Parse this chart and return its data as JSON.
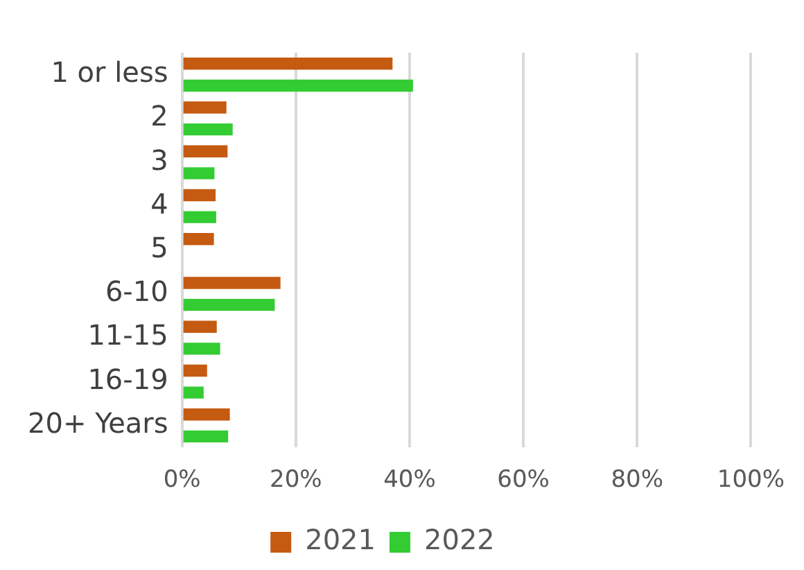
{
  "chart_data": {
    "type": "bar",
    "orientation": "horizontal",
    "categories": [
      "1 or less",
      "2",
      "3",
      "4",
      "5",
      "6-10",
      "11-15",
      "16-19",
      "20+ Years"
    ],
    "series": [
      {
        "name": "2021",
        "color": "#c55a11",
        "values": [
          37.0,
          7.8,
          8.0,
          5.9,
          5.6,
          17.3,
          6.1,
          4.4,
          8.4
        ]
      },
      {
        "name": "2022",
        "color": "#33cc33",
        "values": [
          40.6,
          8.9,
          5.7,
          6.0,
          null,
          16.3,
          6.7,
          3.8,
          8.1
        ]
      }
    ],
    "xlim": [
      0,
      100
    ],
    "xticks": [
      {
        "value": 0,
        "label": "0%"
      },
      {
        "value": 20,
        "label": "20%"
      },
      {
        "value": 40,
        "label": "40%"
      },
      {
        "value": 60,
        "label": "60%"
      },
      {
        "value": 80,
        "label": "80%"
      },
      {
        "value": 100,
        "label": "100%"
      }
    ],
    "grid": "x",
    "legend": "bottom"
  }
}
